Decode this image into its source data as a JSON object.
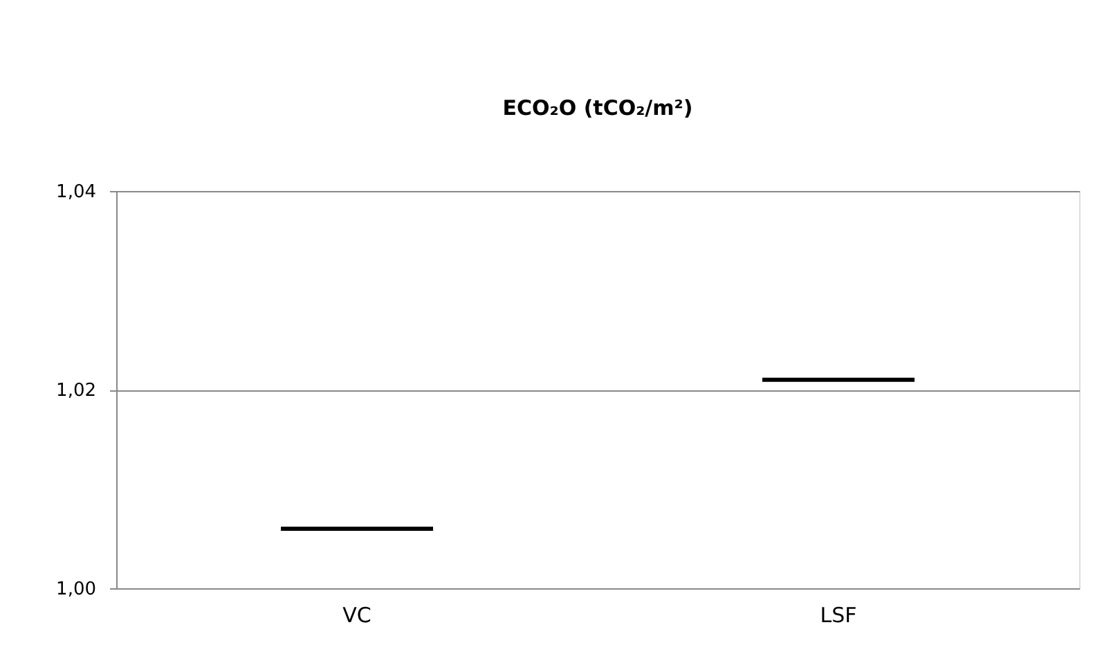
{
  "chart_data": {
    "type": "box",
    "title": "ECO₂O (tCO₂/m²)",
    "categories": [
      "VC",
      "LSF"
    ],
    "boxes": [
      {
        "low": 1.006,
        "q1": 1.006,
        "median": 1.006,
        "q3": 1.006,
        "high": 1.006
      },
      {
        "low": 1.021,
        "q1": 1.021,
        "median": 1.021,
        "q3": 1.021,
        "high": 1.021
      }
    ],
    "color": "#000000",
    "ylim": [
      1.0,
      1.04
    ],
    "yticks": [
      {
        "value": 1.0,
        "label": "1,00"
      },
      {
        "value": 1.02,
        "label": "1,02"
      },
      {
        "value": 1.04,
        "label": "1,04"
      }
    ],
    "grid": "y"
  }
}
